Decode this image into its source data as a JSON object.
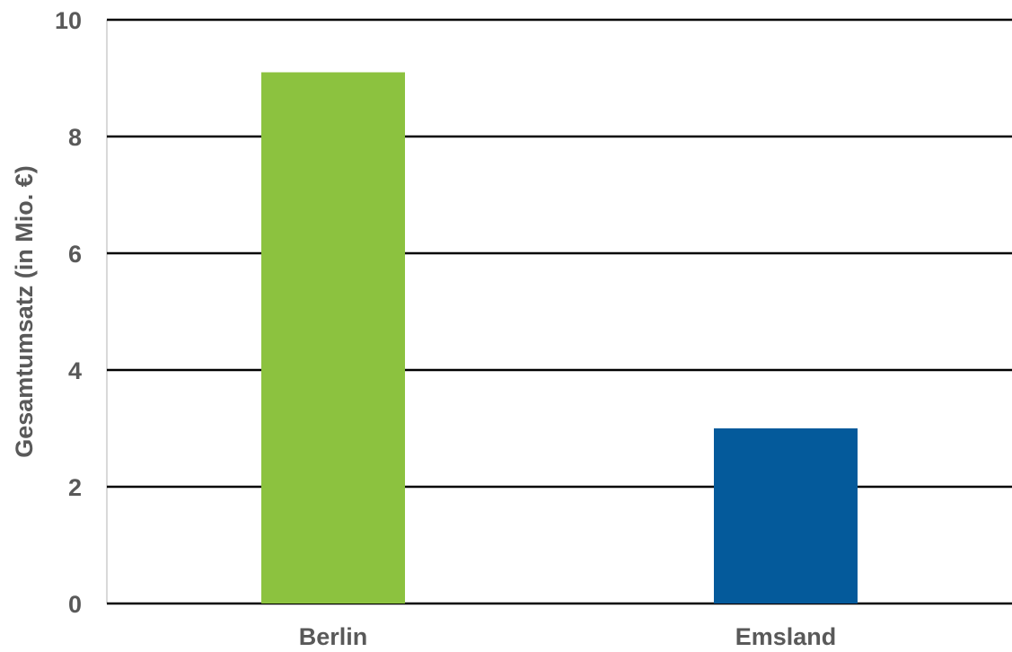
{
  "chart_data": {
    "type": "bar",
    "categories": [
      "Berlin",
      "Emsland"
    ],
    "values": [
      9.1,
      3.0
    ],
    "colors": [
      "#8cc23f",
      "#045a9b"
    ],
    "title": "",
    "xlabel": "",
    "ylabel": "Gesamtumsatz (in Mio. €)",
    "ylim": [
      0,
      10
    ],
    "yticks": [
      0,
      2,
      4,
      6,
      8,
      10
    ],
    "ytick_labels": [
      "0",
      "2",
      "4",
      "6",
      "8",
      "10"
    ],
    "grid": true,
    "legend": "none"
  }
}
